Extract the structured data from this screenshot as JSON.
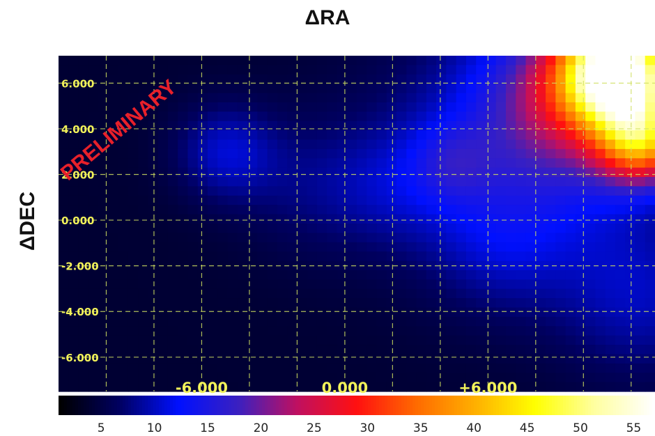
{
  "chart_data": {
    "type": "heatmap",
    "title": "ΔRA",
    "ylabel": "ΔDEC",
    "x_ticks": [
      "-6.000",
      "0.000",
      "+6.000"
    ],
    "x_tick_values": [
      -6,
      0,
      6
    ],
    "y_ticks": [
      "6.000",
      "4.000",
      "2.000",
      "0.000",
      "-2.000",
      "-4.000",
      "-6.000"
    ],
    "y_tick_values": [
      6,
      4,
      2,
      0,
      -2,
      -4,
      -6
    ],
    "xlim": [
      -12.0,
      13.0
    ],
    "ylim": [
      -7.5,
      7.2
    ],
    "grid": true,
    "annotation": "PRELIMINARY",
    "annotation_position": [
      -11.6,
      1.7
    ],
    "colorbar": {
      "min": 1,
      "max": 57,
      "ticks": [
        5,
        10,
        15,
        20,
        25,
        30,
        35,
        40,
        45,
        50,
        55
      ],
      "colormap": [
        "#000000",
        "#000060",
        "#0010ff",
        "#3a20c0",
        "#c01060",
        "#ff1010",
        "#ff6a00",
        "#ffb000",
        "#ffff00",
        "#ffffa0",
        "#ffffff"
      ]
    },
    "background_level": 4,
    "features": [
      {
        "x": 11.5,
        "y": 6.5,
        "sigma": 1.6,
        "amplitude": 52
      },
      {
        "x": 12.5,
        "y": 3.5,
        "sigma": 1.3,
        "amplitude": 28
      },
      {
        "x": 9.5,
        "y": 5.5,
        "sigma": 2.4,
        "amplitude": 14
      },
      {
        "x": 7.5,
        "y": 3.0,
        "sigma": 4.0,
        "amplitude": 8
      },
      {
        "x": 4.5,
        "y": 2.5,
        "sigma": 1.2,
        "amplitude": 5
      },
      {
        "x": -5.0,
        "y": 3.0,
        "sigma": 1.5,
        "amplitude": 6
      },
      {
        "x": -1.5,
        "y": 1.5,
        "sigma": 2.2,
        "amplitude": 3
      },
      {
        "x": 2.0,
        "y": 1.5,
        "sigma": 1.8,
        "amplitude": 3
      },
      {
        "x": 12.5,
        "y": -3.5,
        "sigma": 2.5,
        "amplitude": 5
      },
      {
        "x": 6.5,
        "y": -1.0,
        "sigma": 2.0,
        "amplitude": 3
      }
    ]
  }
}
